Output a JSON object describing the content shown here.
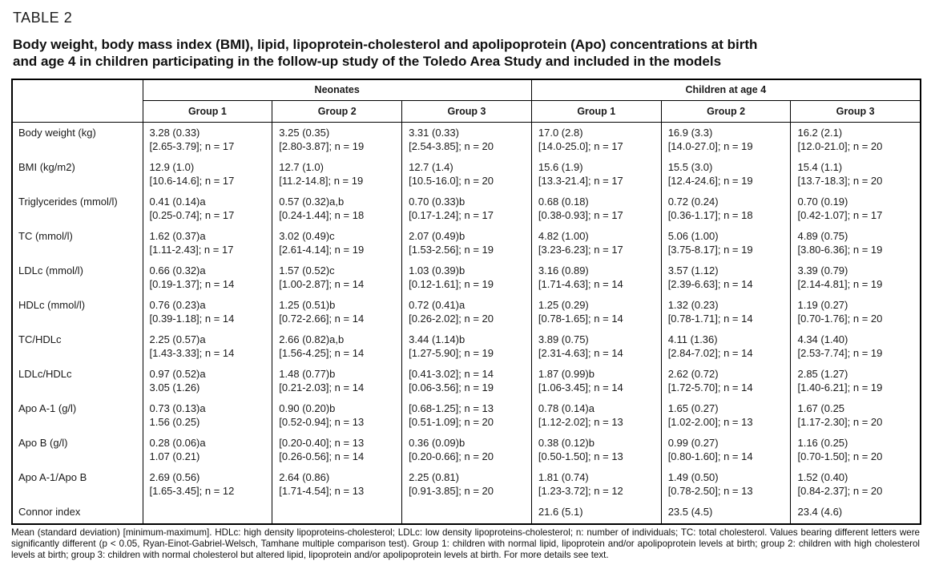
{
  "table_label": "TABLE 2",
  "caption": "Body weight, body mass index (BMI), lipid, lipoprotein-cholesterol and apolipoprotein (Apo) concentrations at birth\nand age 4 in children participating in the follow-up study of the Toledo Area Study and included in the models",
  "header": {
    "group_spans": [
      "Neonates",
      "Children at age 4"
    ],
    "columns": [
      "Group 1",
      "Group 2",
      "Group 3",
      "Group 1",
      "Group 2",
      "Group 3"
    ]
  },
  "rows": [
    {
      "label": "Body weight (kg)",
      "cells": [
        [
          "3.28 (0.33)",
          "[2.65-3.79]; n = 17"
        ],
        [
          "3.25 (0.35)",
          "[2.80-3.87]; n = 19"
        ],
        [
          "3.31 (0.33)",
          "[2.54-3.85]; n = 20"
        ],
        [
          "17.0 (2.8)",
          "[14.0-25.0]; n = 17"
        ],
        [
          "16.9 (3.3)",
          "[14.0-27.0]; n = 19"
        ],
        [
          "16.2 (2.1)",
          "[12.0-21.0]; n = 20"
        ]
      ]
    },
    {
      "label": "BMI (kg/m2)",
      "cells": [
        [
          "12.9 (1.0)",
          "[10.6-14.6]; n = 17"
        ],
        [
          "12.7 (1.0)",
          "[11.2-14.8]; n = 19"
        ],
        [
          "12.7 (1.4)",
          "[10.5-16.0]; n = 20"
        ],
        [
          "15.6 (1.9)",
          "[13.3-21.4]; n = 17"
        ],
        [
          "15.5 (3.0)",
          "[12.4-24.6]; n = 19"
        ],
        [
          "15.4 (1.1)",
          "[13.7-18.3]; n = 20"
        ]
      ]
    },
    {
      "label": "Triglycerides (mmol/l)",
      "cells": [
        [
          "0.41 (0.14)a",
          "[0.25-0.74]; n = 17"
        ],
        [
          "0.57 (0.32)a,b",
          "[0.24-1.44]; n = 18"
        ],
        [
          "0.70 (0.33)b",
          "[0.17-1.24]; n = 17"
        ],
        [
          "0.68 (0.18)",
          "[0.38-0.93]; n = 17"
        ],
        [
          "0.72 (0.24)",
          "[0.36-1.17]; n = 18"
        ],
        [
          "0.70 (0.19)",
          "[0.42-1.07]; n = 17"
        ]
      ]
    },
    {
      "label": "TC (mmol/l)",
      "cells": [
        [
          "1.62 (0.37)a",
          "[1.11-2.43]; n = 17"
        ],
        [
          "3.02 (0.49)c",
          "[2.61-4.14]; n = 19"
        ],
        [
          "2.07 (0.49)b",
          "[1.53-2.56]; n = 19"
        ],
        [
          "4.82 (1.00)",
          "[3.23-6.23]; n = 17"
        ],
        [
          "5.06 (1.00)",
          "[3.75-8.17]; n = 19"
        ],
        [
          "4.89 (0.75)",
          "[3.80-6.36]; n = 19"
        ]
      ]
    },
    {
      "label": "LDLc (mmol/l)",
      "cells": [
        [
          "0.66 (0.32)a",
          "[0.19-1.37]; n = 14"
        ],
        [
          "1.57 (0.52)c",
          "[1.00-2.87]; n = 14"
        ],
        [
          "1.03 (0.39)b",
          "[0.12-1.61]; n = 19"
        ],
        [
          "3.16 (0.89)",
          "[1.71-4.63]; n = 14"
        ],
        [
          "3.57 (1.12)",
          "[2.39-6.63]; n = 14"
        ],
        [
          "3.39 (0.79)",
          "[2.14-4.81]; n = 19"
        ]
      ]
    },
    {
      "label": "HDLc (mmol/l)",
      "cells": [
        [
          "0.76 (0.23)a",
          "[0.39-1.18]; n = 14"
        ],
        [
          "1.25 (0.51)b",
          "[0.72-2.66]; n = 14"
        ],
        [
          "0.72 (0.41)a",
          "[0.26-2.02]; n = 20"
        ],
        [
          "1.25 (0.29)",
          "[0.78-1.65]; n = 14"
        ],
        [
          "1.32 (0.23)",
          "[0.78-1.71]; n = 14"
        ],
        [
          "1.19 (0.27)",
          "[0.70-1.76]; n = 20"
        ]
      ]
    },
    {
      "label": "TC/HDLc",
      "cells": [
        [
          "2.25 (0.57)a",
          "[1.43-3.33]; n = 14"
        ],
        [
          "2.66 (0.82)a,b",
          "[1.56-4.25]; n = 14"
        ],
        [
          "3.44 (1.14)b",
          "[1.27-5.90]; n = 19"
        ],
        [
          "3.89 (0.75)",
          "[2.31-4.63]; n = 14"
        ],
        [
          "4.11 (1.36)",
          "[2.84-7.02]; n = 14"
        ],
        [
          "4.34 (1.40)",
          "[2.53-7.74]; n = 19"
        ]
      ]
    },
    {
      "label": "LDLc/HDLc",
      "cells": [
        [
          "0.97 (0.52)a",
          "3.05 (1.26)"
        ],
        [
          "1.48 (0.77)b",
          "[0.21-2.03]; n = 14"
        ],
        [
          "[0.41-3.02]; n = 14",
          "[0.06-3.56]; n = 19"
        ],
        [
          "1.87 (0.99)b",
          "[1.06-3.45]; n = 14"
        ],
        [
          "2.62 (0.72)",
          "[1.72-5.70]; n = 14"
        ],
        [
          "2.85 (1.27)",
          "[1.40-6.21]; n = 19"
        ]
      ]
    },
    {
      "label": "Apo A-1 (g/l)",
      "cells": [
        [
          "0.73 (0.13)a",
          "1.56 (0.25)"
        ],
        [
          "0.90 (0.20)b",
          "[0.52-0.94]; n = 13"
        ],
        [
          "[0.68-1.25]; n = 13",
          "[0.51-1.09]; n = 20"
        ],
        [
          "0.78 (0.14)a",
          "[1.12-2.02]; n = 13"
        ],
        [
          "1.65 (0.27)",
          "[1.02-2.00]; n = 13"
        ],
        [
          "1.67 (0.25",
          "[1.17-2.30]; n = 20"
        ]
      ]
    },
    {
      "label": "Apo B (g/l)",
      "cells": [
        [
          "0.28 (0.06)a",
          "1.07 (0.21)"
        ],
        [
          "[0.20-0.40]; n = 13",
          "[0.26-0.56]; n = 14"
        ],
        [
          "0.36 (0.09)b",
          "[0.20-0.66]; n = 20"
        ],
        [
          "0.38 (0.12)b",
          "[0.50-1.50]; n = 13"
        ],
        [
          "0.99 (0.27)",
          "[0.80-1.60]; n = 14"
        ],
        [
          "1.16 (0.25)",
          "[0.70-1.50]; n = 20"
        ]
      ]
    },
    {
      "label": "Apo A-1/Apo B",
      "cells": [
        [
          "2.69 (0.56)",
          "[1.65-3.45]; n = 12"
        ],
        [
          "2.64 (0.86)",
          "[1.71-4.54]; n = 13"
        ],
        [
          "2.25 (0.81)",
          "[0.91-3.85]; n = 20"
        ],
        [
          "1.81 (0.74)",
          "[1.23-3.72]; n = 12"
        ],
        [
          "1.49 (0.50)",
          "[0.78-2.50]; n = 13"
        ],
        [
          "1.52 (0.40)",
          "[0.84-2.37]; n = 20"
        ]
      ]
    },
    {
      "label": "Connor index",
      "cells": [
        [
          "",
          ""
        ],
        [
          "",
          ""
        ],
        [
          "",
          ""
        ],
        [
          "21.6 (5.1)",
          ""
        ],
        [
          "23.5 (4.5)",
          ""
        ],
        [
          "23.4 (4.6)",
          ""
        ]
      ]
    }
  ],
  "footnote": "Mean (standard deviation) [minimum-maximum]. HDLc: high density lipoproteins-cholesterol; LDLc: low density lipoproteins-cholesterol; n: number of individuals; TC: total cholesterol. Values bearing different letters were significantly different (p < 0.05, Ryan-Einot-Gabriel-Welsch, Tamhane multiple comparison test). Group 1: children with normal lipid, lipoprotein and/or apolipoprotein levels at birth; group 2: children with high cholesterol levels at birth; group 3: children with normal cholesterol but altered lipid, lipoprotein and/or apolipoprotein levels at birth. For more details see text.",
  "colors": {
    "text": "#111111",
    "border": "#000000",
    "background": "#ffffff"
  }
}
